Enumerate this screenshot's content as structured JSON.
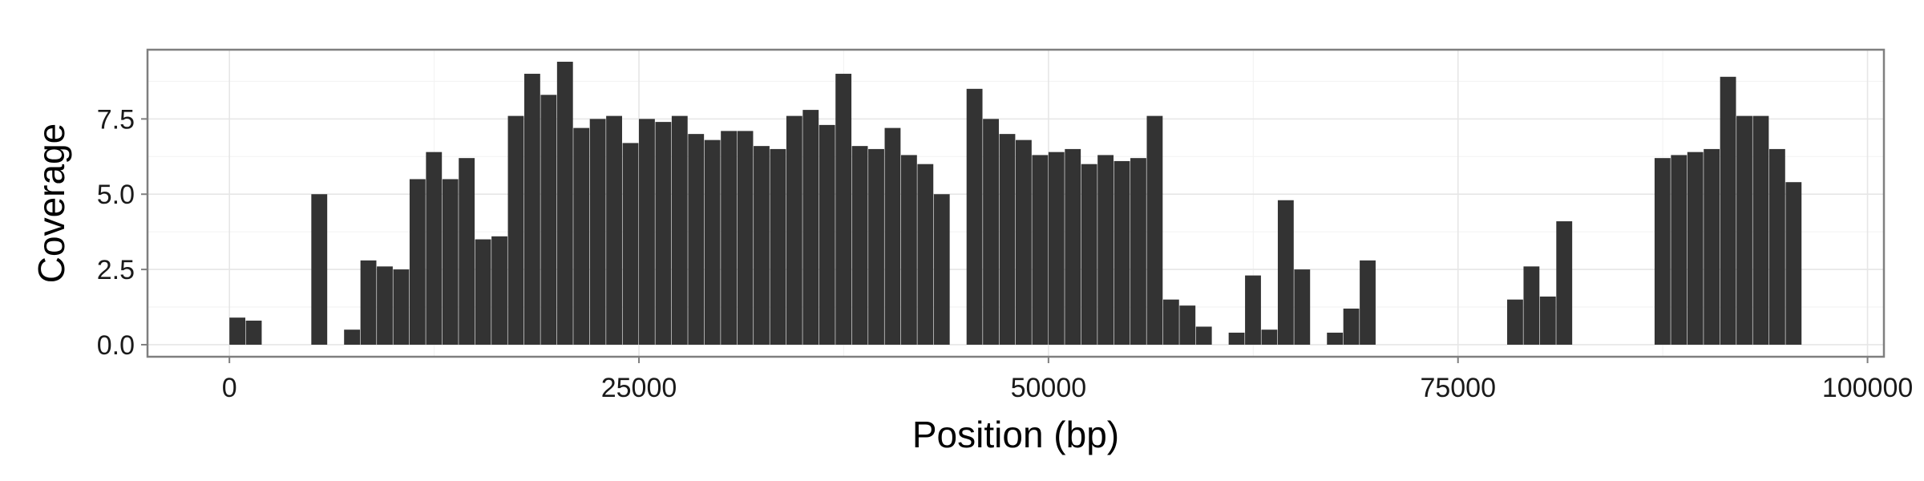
{
  "chart_data": {
    "type": "bar",
    "title": "",
    "xlabel": "Position (bp)",
    "ylabel": "Coverage",
    "xlim": [
      -5000,
      101000
    ],
    "ylim": [
      -0.4,
      9.8
    ],
    "x_ticks": [
      0,
      25000,
      50000,
      75000,
      100000
    ],
    "x_tick_labels": [
      "0",
      "25000",
      "50000",
      "75000",
      "100000"
    ],
    "y_ticks": [
      0,
      2.5,
      5,
      7.5
    ],
    "y_tick_labels": [
      "0.0",
      "2.5",
      "5.0",
      "7.5"
    ],
    "grid": true,
    "legend": "none",
    "bar_color": "#333333",
    "x": [
      500,
      1500,
      5500,
      7500,
      8500,
      9500,
      10500,
      11500,
      12500,
      13500,
      14500,
      15500,
      16500,
      17500,
      18500,
      19500,
      20500,
      21500,
      22500,
      23500,
      24500,
      25500,
      26500,
      27500,
      28500,
      29500,
      30500,
      31500,
      32500,
      33500,
      34500,
      35500,
      36500,
      37500,
      38500,
      39500,
      40500,
      41500,
      42500,
      43500,
      44500,
      45500,
      46500,
      47500,
      48500,
      49500,
      50500,
      51500,
      52500,
      53500,
      54500,
      55500,
      56500,
      57500,
      58500,
      59500,
      61500,
      62500,
      63500,
      64500,
      65500,
      67500,
      68500,
      69500,
      78500,
      79500,
      80500,
      81500,
      87500,
      88500,
      89500,
      90500,
      91500,
      92500,
      93500,
      94500,
      95500
    ],
    "values": [
      0.9,
      0.8,
      5.0,
      0.5,
      2.8,
      2.6,
      2.5,
      5.5,
      6.4,
      5.5,
      6.2,
      3.5,
      3.6,
      7.6,
      9.0,
      8.3,
      9.4,
      7.2,
      7.5,
      7.6,
      6.7,
      7.5,
      7.4,
      7.6,
      7.0,
      6.8,
      7.1,
      7.1,
      6.6,
      6.5,
      7.6,
      7.8,
      7.3,
      9.0,
      6.6,
      6.5,
      7.2,
      6.3,
      6.0,
      5.0,
      0.0,
      8.5,
      7.5,
      7.0,
      6.8,
      6.3,
      6.4,
      6.5,
      6.0,
      6.3,
      6.1,
      6.2,
      7.6,
      1.5,
      1.3,
      0.6,
      0.4,
      2.3,
      0.5,
      4.8,
      2.5,
      0.4,
      1.2,
      2.8,
      1.5,
      2.6,
      1.6,
      4.1,
      6.2,
      6.3,
      6.4,
      6.5,
      8.9,
      7.6,
      7.6,
      6.5,
      5.4
    ]
  }
}
